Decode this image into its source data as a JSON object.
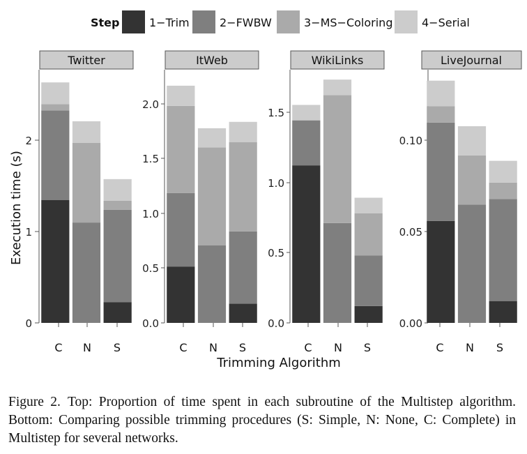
{
  "legend": {
    "title": "Step",
    "items": [
      {
        "label": "1−Trim",
        "color": "#333333"
      },
      {
        "label": "2−FWBW",
        "color": "#7f7f7f"
      },
      {
        "label": "3−MS−Coloring",
        "color": "#aaaaaa"
      },
      {
        "label": "4−Serial",
        "color": "#cccccc"
      }
    ]
  },
  "chart_data": {
    "type": "bar",
    "stacked": true,
    "facets": [
      "Twitter",
      "ItWeb",
      "WikiLinks",
      "LiveJournal"
    ],
    "categories": [
      "C",
      "N",
      "S"
    ],
    "xlabel": "Trimming Algorithm",
    "ylabel": "Execution time (s)",
    "series_names": [
      "1−Trim",
      "2−FWBW",
      "3−MS−Coloring",
      "4−Serial"
    ],
    "panels": [
      {
        "facet": "Twitter",
        "ylim": [
          0,
          2.8
        ],
        "yticks": [
          0,
          1,
          2
        ],
        "yticklabels": [
          "0",
          "1",
          "2"
        ],
        "stacks": {
          "C": [
            1.36,
            0.99,
            0.07,
            0.24
          ],
          "N": [
            0,
            1.11,
            0.88,
            0.24
          ],
          "S": [
            0.23,
            1.02,
            0.1,
            0.24
          ]
        }
      },
      {
        "facet": "ItWeb",
        "ylim": [
          0,
          2.38
        ],
        "yticks": [
          0,
          0.5,
          1.0,
          1.5,
          2.0
        ],
        "yticklabels": [
          "0.0",
          "0.5",
          "1.0",
          "1.5",
          "2.0"
        ],
        "stacks": {
          "C": [
            0.53,
            0.69,
            0.82,
            0.19
          ],
          "N": [
            0,
            0.73,
            0.92,
            0.18
          ],
          "S": [
            0.18,
            0.68,
            0.84,
            0.19
          ]
        }
      },
      {
        "facet": "WikiLinks",
        "ylim": [
          0,
          1.8
        ],
        "yticks": [
          0,
          0.5,
          1.0,
          1.5
        ],
        "yticklabels": [
          "0.0",
          "0.5",
          "1.0",
          "1.5"
        ],
        "stacks": {
          "C": [
            1.12,
            0.32,
            0.0,
            0.11
          ],
          "N": [
            0,
            0.71,
            0.91,
            0.11
          ],
          "S": [
            0.12,
            0.36,
            0.3,
            0.11
          ]
        }
      },
      {
        "facet": "LiveJournal",
        "ylim": [
          0,
          0.139
        ],
        "yticks": [
          0,
          0.05,
          0.1
        ],
        "yticklabels": [
          "0.00",
          "0.05",
          "0.10"
        ],
        "stacks": {
          "C": [
            0.056,
            0.054,
            0.009,
            0.014
          ],
          "N": [
            0,
            0.065,
            0.027,
            0.016
          ],
          "S": [
            0.012,
            0.056,
            0.009,
            0.012
          ]
        }
      }
    ]
  },
  "caption": {
    "label": "Figure 2.",
    "text": "Top: Proportion of time spent in each subroutine of the Multistep algorithm. Bottom: Comparing possible trimming procedures (S: Simple, N: None, C: Complete) in Multistep for several networks."
  }
}
